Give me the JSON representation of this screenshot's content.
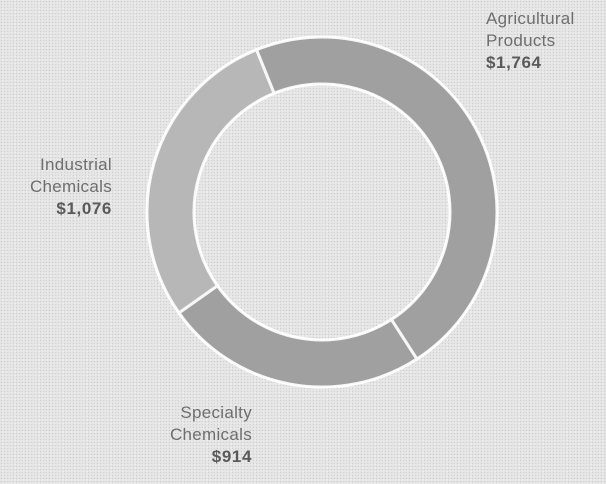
{
  "chart_data": {
    "type": "pie",
    "style": "donut",
    "categories": [
      "Agricultural Products",
      "Specialty Chemicals",
      "Industrial Chemicals"
    ],
    "values": [
      1764,
      914,
      1076
    ],
    "value_labels": [
      "$1,764",
      "$914",
      "$1,076"
    ],
    "start_angle_deg": -22,
    "direction": "clockwise",
    "colors": [
      "#a6a6a6",
      "#a6a6a6",
      "#bdbdbd"
    ],
    "separator_color": "#ffffff"
  },
  "labels": {
    "agricultural": {
      "line1": "Agricultural",
      "line2": "Products",
      "value": "$1,764"
    },
    "industrial": {
      "line1": "Industrial",
      "line2": "Chemicals",
      "value": "$1,076"
    },
    "specialty": {
      "line1": "Specialty",
      "line2": "Chemicals",
      "value": "$914"
    }
  }
}
